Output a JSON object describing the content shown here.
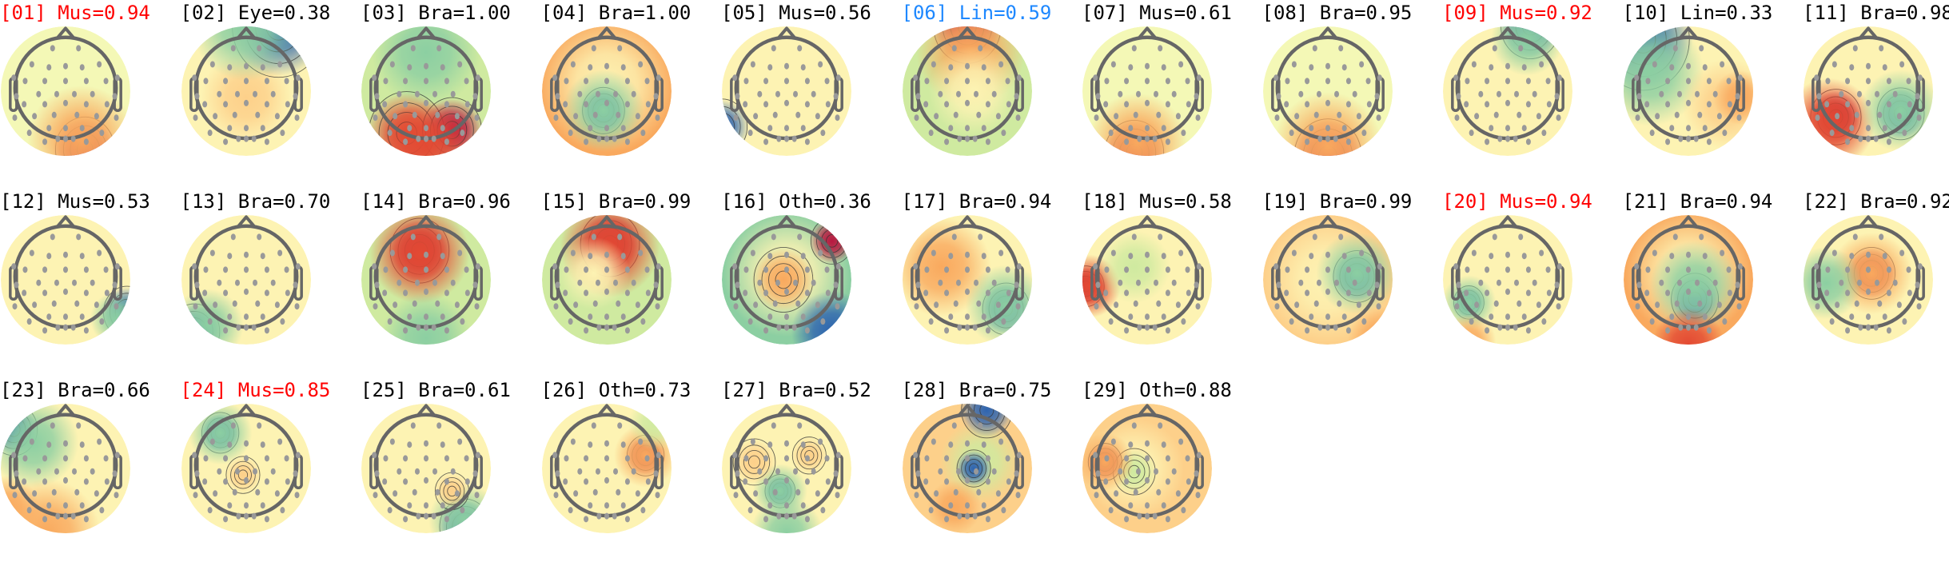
{
  "colors": {
    "default": "#000000",
    "flagged": "#ff0000",
    "highlight": "#1e88ff"
  },
  "components": [
    {
      "id": "[01]",
      "label": "Mus=0.94",
      "color": "flagged"
    },
    {
      "id": "[02]",
      "label": "Eye=0.38",
      "color": "default"
    },
    {
      "id": "[03]",
      "label": "Bra=1.00",
      "color": "default"
    },
    {
      "id": "[04]",
      "label": "Bra=1.00",
      "color": "default"
    },
    {
      "id": "[05]",
      "label": "Mus=0.56",
      "color": "default"
    },
    {
      "id": "[06]",
      "label": "Lin=0.59",
      "color": "highlight"
    },
    {
      "id": "[07]",
      "label": "Mus=0.61",
      "color": "default"
    },
    {
      "id": "[08]",
      "label": "Bra=0.95",
      "color": "default"
    },
    {
      "id": "[09]",
      "label": "Mus=0.92",
      "color": "flagged"
    },
    {
      "id": "[10]",
      "label": "Lin=0.33",
      "color": "default"
    },
    {
      "id": "[11]",
      "label": "Bra=0.98",
      "color": "default"
    },
    {
      "id": "[12]",
      "label": "Mus=0.53",
      "color": "default"
    },
    {
      "id": "[13]",
      "label": "Bra=0.70",
      "color": "default"
    },
    {
      "id": "[14]",
      "label": "Bra=0.96",
      "color": "default"
    },
    {
      "id": "[15]",
      "label": "Bra=0.99",
      "color": "default"
    },
    {
      "id": "[16]",
      "label": "Oth=0.36",
      "color": "default"
    },
    {
      "id": "[17]",
      "label": "Bra=0.94",
      "color": "default"
    },
    {
      "id": "[18]",
      "label": "Mus=0.58",
      "color": "default"
    },
    {
      "id": "[19]",
      "label": "Bra=0.99",
      "color": "default"
    },
    {
      "id": "[20]",
      "label": "Mus=0.94",
      "color": "flagged"
    },
    {
      "id": "[21]",
      "label": "Bra=0.94",
      "color": "default"
    },
    {
      "id": "[22]",
      "label": "Bra=0.92",
      "color": "default"
    },
    {
      "id": "[23]",
      "label": "Bra=0.66",
      "color": "default"
    },
    {
      "id": "[24]",
      "label": "Mus=0.85",
      "color": "flagged"
    },
    {
      "id": "[25]",
      "label": "Bra=0.61",
      "color": "default"
    },
    {
      "id": "[26]",
      "label": "Oth=0.73",
      "color": "default"
    },
    {
      "id": "[27]",
      "label": "Bra=0.52",
      "color": "default"
    },
    {
      "id": "[28]",
      "label": "Bra=0.75",
      "color": "default"
    },
    {
      "id": "[29]",
      "label": "Oth=0.88",
      "color": "default"
    }
  ]
}
